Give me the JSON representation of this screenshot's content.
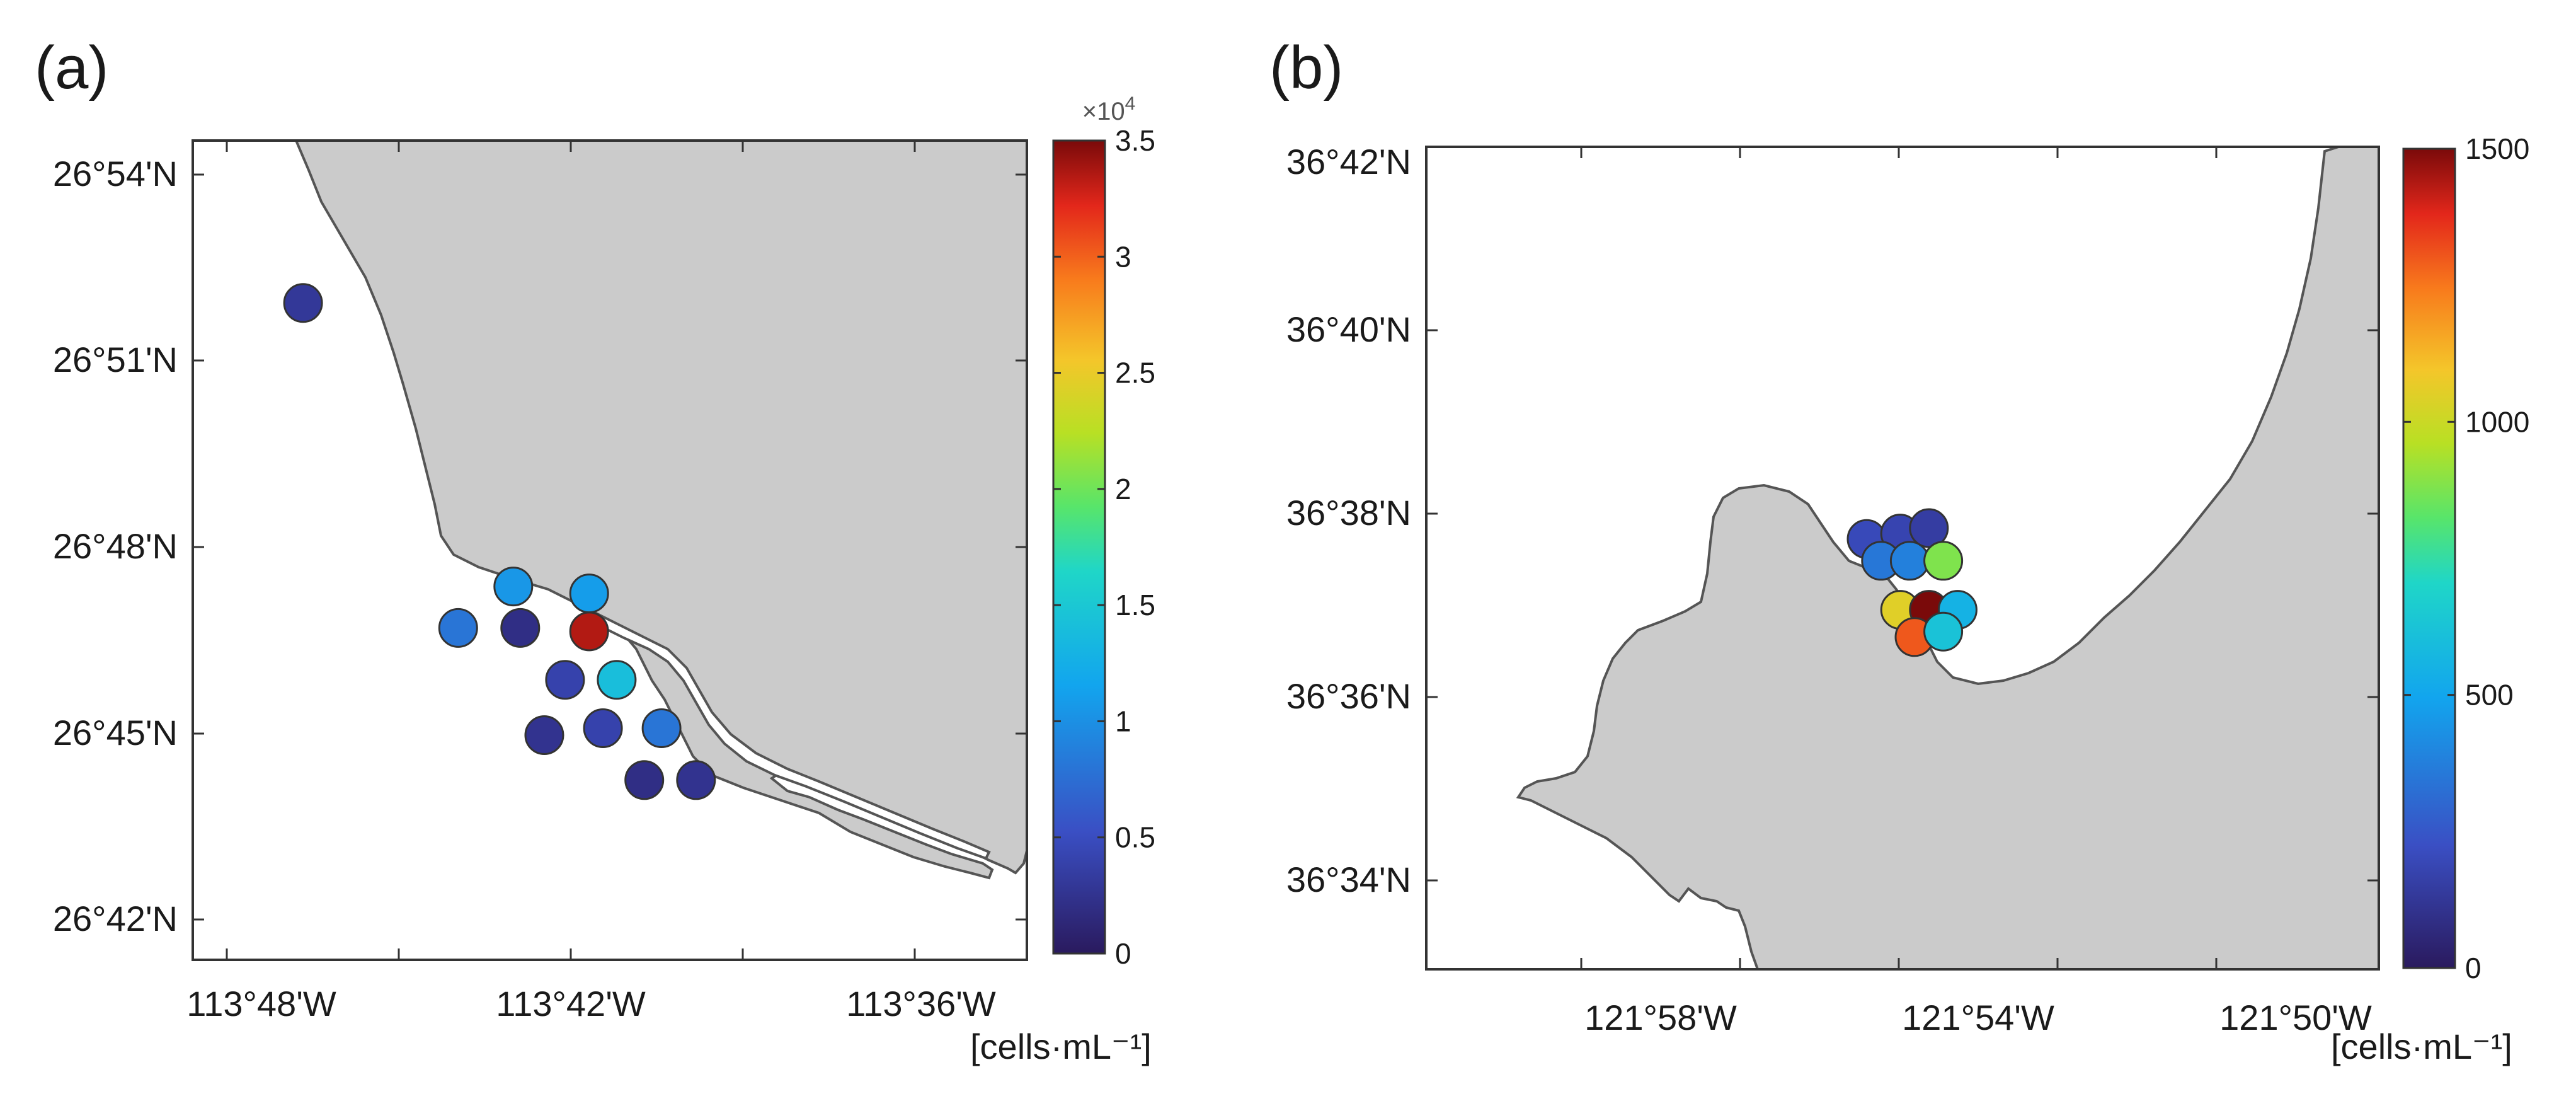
{
  "panels": [
    {
      "id": "a",
      "label": "(a)",
      "lat_ticks": [
        "26°54'N",
        "26°51'N",
        "26°48'N",
        "26°45'N",
        "26°42'N"
      ],
      "lon_ticks": [
        "113°48'W",
        "113°42'W",
        "113°36'W"
      ],
      "colorbar": {
        "min": 0,
        "max": 35000,
        "exponent_label": "×10",
        "exponent": "4",
        "tick_labels": [
          "3.5",
          "3",
          "2.5",
          "2",
          "1.5",
          "1",
          "0.5",
          "0"
        ],
        "tick_values": [
          3.5,
          3,
          2.5,
          2,
          1.5,
          1,
          0.5,
          0
        ],
        "unit_label": "[cells·mL⁻¹]"
      },
      "stations": [
        {
          "lon": -113.783,
          "lat": 26.877,
          "value": 3000
        },
        {
          "lon": -113.738,
          "lat": 26.783,
          "value": 8000
        },
        {
          "lon": -113.722,
          "lat": 26.795,
          "value": 10500
        },
        {
          "lon": -113.72,
          "lat": 26.783,
          "value": 2000
        },
        {
          "lon": -113.7,
          "lat": 26.793,
          "value": 11000
        },
        {
          "lon": -113.7,
          "lat": 26.782,
          "value": 33500
        },
        {
          "lon": -113.707,
          "lat": 26.768,
          "value": 4000
        },
        {
          "lon": -113.692,
          "lat": 26.768,
          "value": 14000
        },
        {
          "lon": -113.713,
          "lat": 26.752,
          "value": 2500
        },
        {
          "lon": -113.696,
          "lat": 26.754,
          "value": 4000
        },
        {
          "lon": -113.679,
          "lat": 26.754,
          "value": 8000
        },
        {
          "lon": -113.684,
          "lat": 26.739,
          "value": 2000
        },
        {
          "lon": -113.669,
          "lat": 26.739,
          "value": 2500
        }
      ]
    },
    {
      "id": "b",
      "label": "(b)",
      "lat_ticks": [
        "36°42'N",
        "36°40'N",
        "36°38'N",
        "36°36'N",
        "36°34'N"
      ],
      "lon_ticks": [
        "121°58'W",
        "121°54'W",
        "121°50'W"
      ],
      "colorbar": {
        "min": 0,
        "max": 1500,
        "tick_labels": [
          "1500",
          "1000",
          "500",
          "0"
        ],
        "tick_values": [
          1500,
          1000,
          500,
          0
        ],
        "unit_label": "[cells·mL⁻¹]"
      },
      "stations": [
        {
          "lon": -121.901,
          "lat": 36.629,
          "value": 200
        },
        {
          "lon": -121.894,
          "lat": 36.63,
          "value": 180
        },
        {
          "lon": -121.888,
          "lat": 36.631,
          "value": 150
        },
        {
          "lon": -121.898,
          "lat": 36.625,
          "value": 350
        },
        {
          "lon": -121.892,
          "lat": 36.625,
          "value": 380
        },
        {
          "lon": -121.885,
          "lat": 36.625,
          "value": 880
        },
        {
          "lon": -121.894,
          "lat": 36.616,
          "value": 1050
        },
        {
          "lon": -121.888,
          "lat": 36.616,
          "value": 1500
        },
        {
          "lon": -121.882,
          "lat": 36.616,
          "value": 550
        },
        {
          "lon": -121.891,
          "lat": 36.611,
          "value": 1300
        },
        {
          "lon": -121.885,
          "lat": 36.612,
          "value": 620
        }
      ]
    }
  ],
  "colors": {
    "land": "#cbcbcb",
    "coast": "#555555",
    "frame": "#333333",
    "marker_edge": "#333333"
  }
}
